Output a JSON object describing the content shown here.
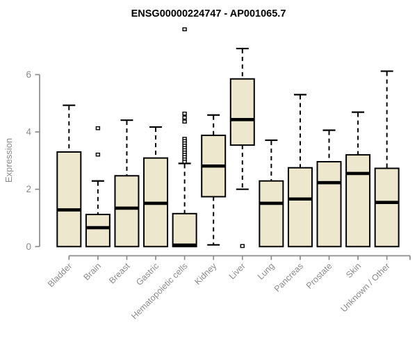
{
  "chart_data": {
    "type": "boxplot",
    "title": "ENSG00000224747 - AP001065.7",
    "xlabel": "",
    "ylabel": "Expression",
    "y_ticks": [
      0,
      2,
      4,
      6
    ],
    "ylim": [
      -0.3,
      7.9
    ],
    "grid": false,
    "legend": false,
    "categories": [
      "Bladder",
      "Brain",
      "Breast",
      "Gastric",
      "Hematopoietic cells",
      "Kidney",
      "Liver",
      "Lung",
      "Pancreas",
      "Prostate",
      "Skin",
      "Unknown / Other"
    ],
    "boxes": [
      {
        "category": "Bladder",
        "whisker_low": 0,
        "q1": 0,
        "median": 1.28,
        "q3": 3.3,
        "whisker_high": 4.93,
        "outliers": []
      },
      {
        "category": "Brain",
        "whisker_low": 0,
        "q1": 0,
        "median": 0.66,
        "q3": 1.12,
        "whisker_high": 2.29,
        "outliers": [
          4.13,
          3.21
        ]
      },
      {
        "category": "Breast",
        "whisker_low": 0,
        "q1": 0,
        "median": 1.34,
        "q3": 2.47,
        "whisker_high": 4.41,
        "outliers": []
      },
      {
        "category": "Gastric",
        "whisker_low": 0,
        "q1": 0,
        "median": 1.51,
        "q3": 3.09,
        "whisker_high": 4.17,
        "outliers": []
      },
      {
        "category": "Hematopoietic cells",
        "whisker_low": 0,
        "q1": 0,
        "median": 0.05,
        "q3": 1.15,
        "whisker_high": 2.9,
        "outliers": [
          7.58,
          4.64,
          4.5,
          4.36,
          3.76,
          3.68,
          3.6,
          3.52,
          3.44,
          3.36,
          3.28,
          3.2,
          3.12,
          3.04,
          2.96
        ]
      },
      {
        "category": "Kidney",
        "whisker_low": 0.06,
        "q1": 1.74,
        "median": 2.81,
        "q3": 3.88,
        "whisker_high": 4.59,
        "outliers": []
      },
      {
        "category": "Liver",
        "whisker_low": 2.0,
        "q1": 3.54,
        "median": 4.43,
        "q3": 5.85,
        "whisker_high": 6.91,
        "outliers": [
          0.02
        ]
      },
      {
        "category": "Lung",
        "whisker_low": 0,
        "q1": 0,
        "median": 1.51,
        "q3": 2.29,
        "whisker_high": 3.71,
        "outliers": []
      },
      {
        "category": "Pancreas",
        "whisker_low": 0,
        "q1": 0,
        "median": 1.66,
        "q3": 2.75,
        "whisker_high": 5.3,
        "outliers": []
      },
      {
        "category": "Prostate",
        "whisker_low": 0,
        "q1": 0,
        "median": 2.23,
        "q3": 2.96,
        "whisker_high": 4.06,
        "outliers": []
      },
      {
        "category": "Skin",
        "whisker_low": 0,
        "q1": 0,
        "median": 2.55,
        "q3": 3.2,
        "whisker_high": 4.69,
        "outliers": []
      },
      {
        "category": "Unknown / Other",
        "whisker_low": 0,
        "q1": 0,
        "median": 1.54,
        "q3": 2.73,
        "whisker_high": 6.12,
        "outliers": []
      }
    ]
  },
  "style": {
    "box_fill": "#ece7cd",
    "box_stroke": "#000000",
    "median_color": "#000000",
    "whisker_color": "#000000",
    "outlier_fill": "#ffffff",
    "outlier_stroke": "#000000",
    "axis_color": "#8b8b8b",
    "label_color": "#8b8b8b",
    "title_color": "#000000",
    "background": "#ffffff"
  }
}
